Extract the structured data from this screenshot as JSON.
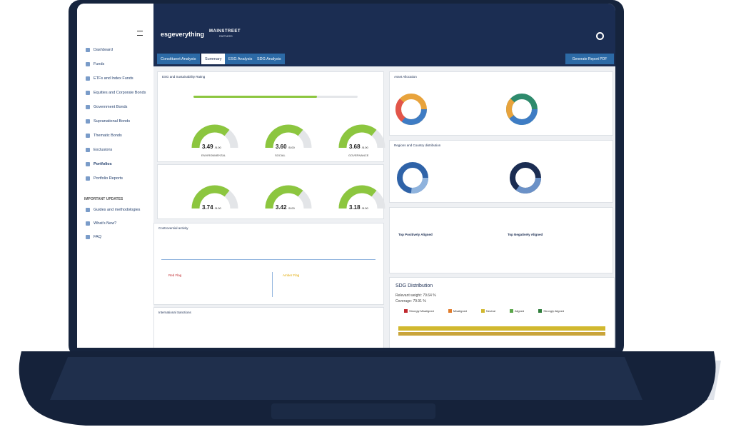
{
  "header": {
    "logo": "esgeverything",
    "brand": "MAINSTREET",
    "brand_sub": "PARTNERS"
  },
  "sidebar": {
    "items": [
      "Dashboard",
      "Funds",
      "ETFs and Index Funds",
      "Equities and Corporate Bonds",
      "Government Bonds",
      "Supranational Bonds",
      "Thematic Bonds",
      "Exclusions",
      "Portfolios",
      "Portfolio Reports"
    ],
    "section": "IMPORTANT UPDATES",
    "updates": [
      "Guides and methodologies",
      "What's New?",
      "FAQ"
    ]
  },
  "tabs": [
    "Constituent Analysis",
    "Summary",
    "ESG Analysis",
    "SDG Analysis"
  ],
  "report_button": "Generate Report PDF",
  "panels": {
    "esg_rating": {
      "title": "ESG and Sustainability Rating",
      "gauges": [
        {
          "value": "3.49",
          "max": "/5.00",
          "label": "ENVIRONMENTAL"
        },
        {
          "value": "3.60",
          "max": "/5.00",
          "label": "SOCIAL"
        },
        {
          "value": "3.68",
          "max": "/5.00",
          "label": "GOVERNANCE"
        }
      ]
    },
    "alignment": {
      "gauges": [
        {
          "value": "3.74",
          "max": "/5.00"
        },
        {
          "value": "3.42",
          "max": "/5.00"
        },
        {
          "value": "3.18",
          "max": "/5.00"
        }
      ]
    },
    "controversial": {
      "title": "Controversial activity",
      "red": "Red Flag",
      "amber": "Amber Flag"
    },
    "sanctions": {
      "title": "International Sanctions"
    },
    "asset": {
      "title": "Asset Allocation"
    },
    "regions": {
      "title": "Regions and Country distribution"
    },
    "top": {
      "positive": "Top Positively Aligned",
      "negative": "Top Negatively Aligned"
    },
    "sdg": {
      "title": "SDG Distribution",
      "weight": "Relevant weight: 79.64 %",
      "coverage": "Coverage: 79.91 %",
      "legend": [
        "Strongly Misaligned",
        "Misaligned",
        "Neutral",
        "Aligned",
        "Strongly Aligned"
      ]
    }
  }
}
